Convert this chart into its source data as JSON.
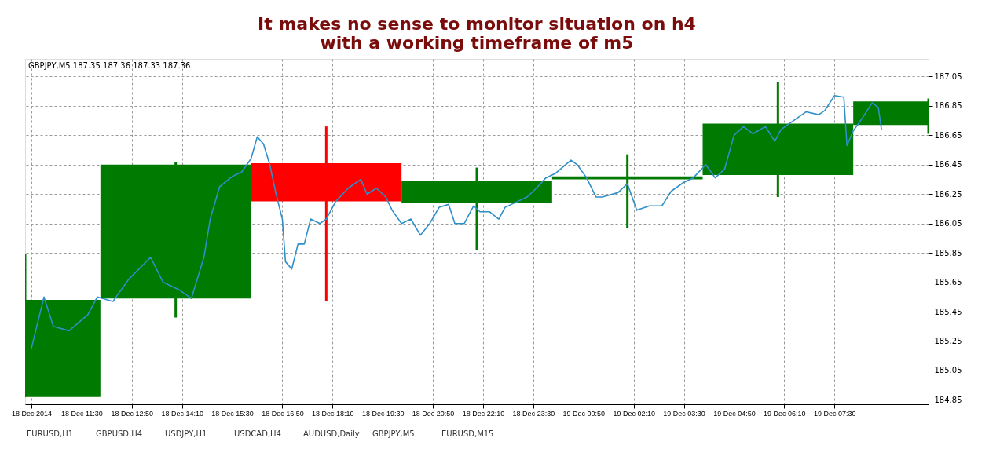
{
  "chart_data": {
    "type": "candlestick",
    "title": [
      "It makes no sense to monitor situation on h4",
      "with a working timeframe of m5"
    ],
    "series": [
      {
        "x": [
          "2014-12-18T10:00",
          "2014-12-18T14:00",
          "2014-12-18T18:00",
          "2014-12-18T22:00",
          "2014-12-19T02:00",
          "2014-12-19T06:00",
          "2014-12-19T10:00"
        ],
        "ohlc": [
          [
            184.87,
            185.84,
            184.87,
            185.53
          ],
          [
            185.54,
            186.47,
            185.41,
            186.45
          ],
          [
            186.46,
            186.71,
            185.52,
            186.2
          ],
          [
            186.19,
            186.43,
            185.87,
            186.34
          ],
          [
            186.35,
            186.52,
            186.02,
            186.37
          ],
          [
            186.38,
            187.01,
            186.23,
            186.73
          ],
          [
            186.72,
            186.9,
            186.66,
            186.88
          ]
        ],
        "colors": [
          "#007a00",
          "#007a00",
          "#ff0000",
          "#007a00",
          "#007a00",
          "#007a00",
          "#007a00"
        ]
      },
      {
        "type": "line",
        "color": "#2f8fc8",
        "x": [
          "2014-12-18T10:10",
          "2014-12-18T10:30",
          "2014-12-18T10:45",
          "2014-12-18T11:10",
          "2014-12-18T11:40",
          "2014-12-18T11:55",
          "2014-12-18T12:20",
          "2014-12-18T12:45",
          "2014-12-18T13:20",
          "2014-12-18T13:40",
          "2014-12-18T14:05",
          "2014-12-18T14:25",
          "2014-12-18T14:45",
          "2014-12-18T14:55",
          "2014-12-18T15:10",
          "2014-12-18T15:30",
          "2014-12-18T15:45",
          "2014-12-18T16:00",
          "2014-12-18T16:10",
          "2014-12-18T16:20",
          "2014-12-18T16:30",
          "2014-12-18T16:40",
          "2014-12-18T16:50",
          "2014-12-18T16:55",
          "2014-12-18T17:05",
          "2014-12-18T17:15",
          "2014-12-18T17:25",
          "2014-12-18T17:35",
          "2014-12-18T17:50",
          "2014-12-18T18:00",
          "2014-12-18T18:15",
          "2014-12-18T18:35",
          "2014-12-18T18:55",
          "2014-12-18T19:05",
          "2014-12-18T19:20",
          "2014-12-18T19:35",
          "2014-12-18T19:45",
          "2014-12-18T20:00",
          "2014-12-18T20:15",
          "2014-12-18T20:30",
          "2014-12-18T20:45",
          "2014-12-18T21:00",
          "2014-12-18T21:15",
          "2014-12-18T21:25",
          "2014-12-18T21:40",
          "2014-12-18T21:55",
          "2014-12-18T22:05",
          "2014-12-18T22:20",
          "2014-12-18T22:35",
          "2014-12-18T22:45",
          "2014-12-18T23:05",
          "2014-12-18T23:20",
          "2014-12-18T23:35",
          "2014-12-18T23:50",
          "2014-12-19T00:05",
          "2014-12-19T00:30",
          "2014-12-19T00:40",
          "2014-12-19T00:55",
          "2014-12-19T01:10",
          "2014-12-19T01:20",
          "2014-12-19T01:45",
          "2014-12-19T02:00",
          "2014-12-19T02:15",
          "2014-12-19T02:35",
          "2014-12-19T02:55",
          "2014-12-19T03:10",
          "2014-12-19T03:30",
          "2014-12-19T03:45",
          "2014-12-19T04:05",
          "2014-12-19T04:20",
          "2014-12-19T04:35",
          "2014-12-19T04:50",
          "2014-12-19T05:05",
          "2014-12-19T05:20",
          "2014-12-19T05:40",
          "2014-12-19T05:55",
          "2014-12-19T06:05",
          "2014-12-19T06:25",
          "2014-12-19T06:45",
          "2014-12-19T07:05",
          "2014-12-19T07:15",
          "2014-12-19T07:30",
          "2014-12-19T07:45",
          "2014-12-19T07:50",
          "2014-12-19T08:00",
          "2014-12-19T08:15",
          "2014-12-19T08:30",
          "2014-12-19T08:40",
          "2014-12-19T08:45"
        ],
        "values": [
          185.2,
          185.55,
          185.35,
          185.32,
          185.43,
          185.55,
          185.52,
          185.67,
          185.82,
          185.65,
          185.6,
          185.54,
          185.82,
          186.08,
          186.3,
          186.37,
          186.4,
          186.49,
          186.64,
          186.59,
          186.45,
          186.25,
          186.08,
          185.79,
          185.74,
          185.91,
          185.91,
          186.08,
          186.05,
          186.08,
          186.2,
          186.29,
          186.35,
          186.25,
          186.29,
          186.23,
          186.14,
          186.05,
          186.08,
          185.97,
          186.05,
          186.16,
          186.18,
          186.05,
          186.05,
          186.17,
          186.13,
          186.13,
          186.08,
          186.16,
          186.2,
          186.23,
          186.29,
          186.36,
          186.39,
          186.48,
          186.45,
          186.36,
          186.23,
          186.23,
          186.26,
          186.32,
          186.14,
          186.17,
          186.17,
          186.27,
          186.33,
          186.36,
          186.45,
          186.36,
          186.42,
          186.65,
          186.71,
          186.66,
          186.71,
          186.61,
          186.69,
          186.75,
          186.81,
          186.79,
          186.82,
          186.92,
          186.91,
          186.58,
          186.68,
          186.77,
          186.87,
          186.84,
          186.69
        ]
      }
    ],
    "xlim": [
      "2014-12-18T10:00",
      "2014-12-19T10:00"
    ],
    "xticks": [
      {
        "value": "2014-12-18T10:10",
        "label": "18 Dec 2014"
      },
      {
        "value": "2014-12-18T11:30",
        "label": "18 Dec 11:30"
      },
      {
        "value": "2014-12-18T12:50",
        "label": "18 Dec 12:50"
      },
      {
        "value": "2014-12-18T14:10",
        "label": "18 Dec 14:10"
      },
      {
        "value": "2014-12-18T15:30",
        "label": "18 Dec 15:30"
      },
      {
        "value": "2014-12-18T16:50",
        "label": "18 Dec 16:50"
      },
      {
        "value": "2014-12-18T18:10",
        "label": "18 Dec 18:10"
      },
      {
        "value": "2014-12-18T19:30",
        "label": "18 Dec 19:30"
      },
      {
        "value": "2014-12-18T20:50",
        "label": "18 Dec 20:50"
      },
      {
        "value": "2014-12-18T22:10",
        "label": "18 Dec 22:10"
      },
      {
        "value": "2014-12-18T23:30",
        "label": "18 Dec 23:30"
      },
      {
        "value": "2014-12-19T00:50",
        "label": "19 Dec 00:50"
      },
      {
        "value": "2014-12-19T02:10",
        "label": "19 Dec 02:10"
      },
      {
        "value": "2014-12-19T03:30",
        "label": "19 Dec 03:30"
      },
      {
        "value": "2014-12-19T04:50",
        "label": "19 Dec 04:50"
      },
      {
        "value": "2014-12-19T06:10",
        "label": "19 Dec 06:10"
      },
      {
        "value": "2014-12-19T07:30",
        "label": "19 Dec 07:30"
      }
    ],
    "ylim": [
      184.82,
      187.17
    ],
    "yticks": [
      184.85,
      185.05,
      185.25,
      185.45,
      185.65,
      185.85,
      186.05,
      186.25,
      186.45,
      186.65,
      186.85,
      187.05
    ],
    "grid": true,
    "legend": false,
    "marker": "none",
    "line_style": "solid",
    "annotations": [
      "GBPJPY,M5  187.35 187.36 187.33 187.36",
      "EURUSD,H1",
      "GBPUSD,H4",
      "USDJPY,H1",
      "USDCAD,H4",
      "AUDUSD,Daily",
      "GBPJPY,M5",
      "EURUSD,M15"
    ]
  }
}
